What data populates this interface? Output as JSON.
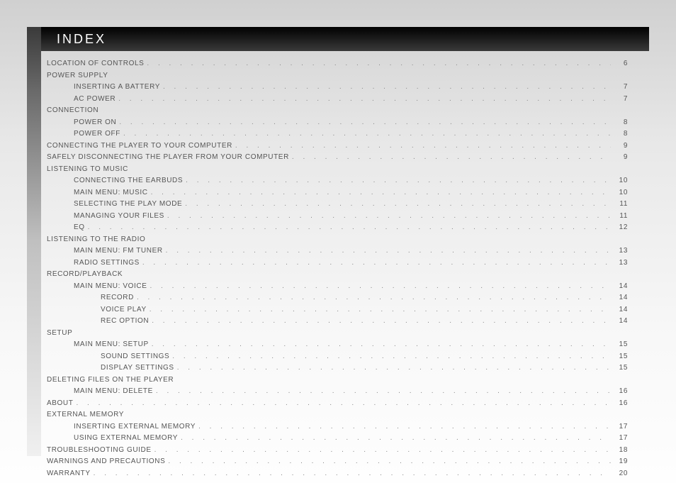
{
  "title": "INDEX",
  "colors": {
    "header_bg_start": "#000000",
    "header_bg_end": "#3a3a3a",
    "page_grad_top": "#d0d0d0",
    "page_grad_bottom": "#fefefe",
    "text": "#555555",
    "dots": "#888888"
  },
  "typography": {
    "header_fontsize": 18,
    "header_letterspacing": 3,
    "body_fontsize": 10,
    "body_letterspacing": 0.6,
    "line_height": 16.5
  },
  "entries": [
    {
      "label": "LOCATION OF CONTROLS",
      "page": "6",
      "indent": 0
    },
    {
      "label": "POWER SUPPLY",
      "page": "",
      "indent": 0
    },
    {
      "label": "INSERTING A BATTERY",
      "page": "7",
      "indent": 1
    },
    {
      "label": "AC POWER",
      "page": "7",
      "indent": 1
    },
    {
      "label": "CONNECTION",
      "page": "",
      "indent": 0
    },
    {
      "label": "POWER ON",
      "page": "8",
      "indent": 1
    },
    {
      "label": "POWER OFF",
      "page": "8",
      "indent": 1
    },
    {
      "label": "CONNECTING THE PLAYER TO YOUR COMPUTER",
      "page": "9",
      "indent": 0
    },
    {
      "label": "SAFELY DISCONNECTING THE PLAYER FROM YOUR COMPUTER",
      "page": "9",
      "indent": 0
    },
    {
      "label": "LISTENING TO MUSIC",
      "page": "",
      "indent": 0
    },
    {
      "label": "CONNECTING THE EARBUDS",
      "page": "10",
      "indent": 1
    },
    {
      "label": "MAIN MENU: MUSIC",
      "page": "10",
      "indent": 1
    },
    {
      "label": "SELECTING THE PLAY MODE",
      "page": "11",
      "indent": 1
    },
    {
      "label": "MANAGING YOUR FILES",
      "page": "11",
      "indent": 1
    },
    {
      "label": "EQ",
      "page": "12",
      "indent": 1
    },
    {
      "label": "LISTENING TO THE RADIO",
      "page": "",
      "indent": 0
    },
    {
      "label": "MAIN MENU: FM TUNER",
      "page": "13",
      "indent": 1
    },
    {
      "label": "RADIO SETTINGS",
      "page": "13",
      "indent": 1
    },
    {
      "label": "RECORD/PLAYBACK",
      "page": "",
      "indent": 0
    },
    {
      "label": "MAIN MENU: VOICE",
      "page": "14",
      "indent": 1
    },
    {
      "label": "RECORD",
      "page": "14",
      "indent": 2
    },
    {
      "label": "VOICE PLAY",
      "page": "14",
      "indent": 2
    },
    {
      "label": "REC OPTION",
      "page": "14",
      "indent": 2
    },
    {
      "label": "SETUP",
      "page": "",
      "indent": 0
    },
    {
      "label": "MAIN MENU: SETUP",
      "page": "15",
      "indent": 1
    },
    {
      "label": "SOUND SETTINGS",
      "page": "15",
      "indent": 2
    },
    {
      "label": "DISPLAY SETTINGS",
      "page": "15",
      "indent": 2
    },
    {
      "label": "DELETING FILES ON THE PLAYER",
      "page": "",
      "indent": 0
    },
    {
      "label": "MAIN MENU: DELETE",
      "page": "16",
      "indent": 1
    },
    {
      "label": "ABOUT",
      "page": "16",
      "indent": 0
    },
    {
      "label": "EXTERNAL MEMORY",
      "page": "",
      "indent": 0
    },
    {
      "label": "INSERTING EXTERNAL MEMORY",
      "page": "17",
      "indent": 1
    },
    {
      "label": "USING EXTERNAL MEMORY",
      "page": "17",
      "indent": 1
    },
    {
      "label": "TROUBLESHOOTING GUIDE",
      "page": "18",
      "indent": 0
    },
    {
      "label": "WARNINGS AND PRECAUTIONS",
      "page": "19",
      "indent": 0
    },
    {
      "label": "WARRANTY",
      "page": "20",
      "indent": 0
    }
  ]
}
